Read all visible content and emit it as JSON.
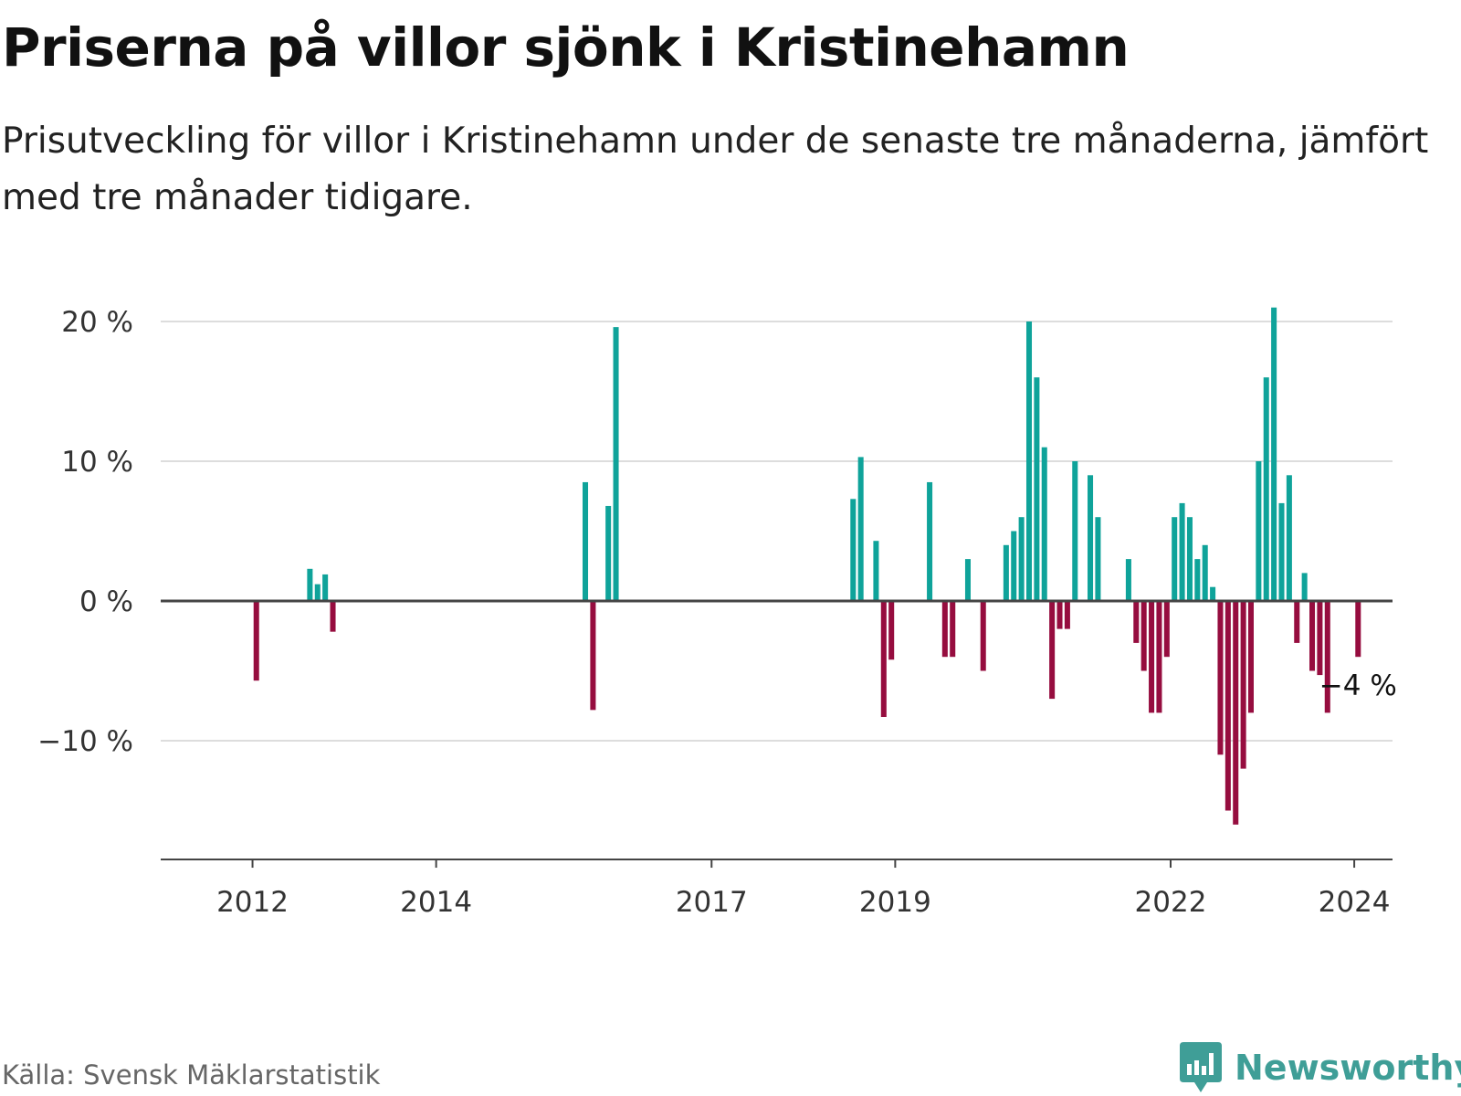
{
  "title": "Priserna på villor sjönk i Kristinehamn",
  "subtitle": "Prisutveckling för villor i Kristinehamn under de senaste tre månaderna, jämfört med tre månader tidigare.",
  "source": "Källa: Svensk Mäklarstatistik",
  "brand": "Newsworthy",
  "colors": {
    "positive": "#0fa39a",
    "negative": "#960d3f",
    "grid": "#dddddd",
    "axis": "#444444",
    "brand": "#3f9e97"
  },
  "chart_data": {
    "type": "bar",
    "title": "Priserna på villor sjönk i Kristinehamn",
    "xlabel": "",
    "ylabel": "",
    "ylim": [
      -18.5,
      21.5
    ],
    "y_ticks": [
      20,
      10,
      0,
      -10
    ],
    "y_tick_labels": [
      "20 %",
      "10 %",
      "0 %",
      "−10 %"
    ],
    "x_start": "2011-01",
    "x_end": "2024-06",
    "x_ticks": [
      {
        "year": 2012,
        "label": "2012"
      },
      {
        "year": 2014,
        "label": "2014"
      },
      {
        "year": 2017,
        "label": "2017"
      },
      {
        "year": 2019,
        "label": "2019"
      },
      {
        "year": 2022,
        "label": "2022"
      },
      {
        "year": 2024,
        "label": "2024"
      }
    ],
    "annotation": {
      "month": "2024-01",
      "value": -4,
      "label": "−4 %"
    },
    "series": [
      {
        "name": "Prisutveckling",
        "values": [
          {
            "month": "2012-01",
            "value": -5.7
          },
          {
            "month": "2012-08",
            "value": 2.3
          },
          {
            "month": "2012-09",
            "value": 1.2
          },
          {
            "month": "2012-10",
            "value": 1.9
          },
          {
            "month": "2012-11",
            "value": -2.2
          },
          {
            "month": "2015-08",
            "value": 8.5
          },
          {
            "month": "2015-09",
            "value": -7.8
          },
          {
            "month": "2015-11",
            "value": 6.8
          },
          {
            "month": "2015-12",
            "value": 19.6
          },
          {
            "month": "2018-07",
            "value": 7.3
          },
          {
            "month": "2018-08",
            "value": 10.3
          },
          {
            "month": "2018-10",
            "value": 4.3
          },
          {
            "month": "2018-11",
            "value": -8.3
          },
          {
            "month": "2018-12",
            "value": -4.2
          },
          {
            "month": "2019-05",
            "value": 8.5
          },
          {
            "month": "2019-07",
            "value": -4.0
          },
          {
            "month": "2019-08",
            "value": -4.0
          },
          {
            "month": "2019-10",
            "value": 3.0
          },
          {
            "month": "2019-12",
            "value": -5.0
          },
          {
            "month": "2020-03",
            "value": 4.0
          },
          {
            "month": "2020-04",
            "value": 5.0
          },
          {
            "month": "2020-05",
            "value": 6.0
          },
          {
            "month": "2020-06",
            "value": 20.0
          },
          {
            "month": "2020-07",
            "value": 16.0
          },
          {
            "month": "2020-08",
            "value": 11.0
          },
          {
            "month": "2020-09",
            "value": -7.0
          },
          {
            "month": "2020-10",
            "value": -2.0
          },
          {
            "month": "2020-11",
            "value": -2.0
          },
          {
            "month": "2020-12",
            "value": 10.0
          },
          {
            "month": "2021-02",
            "value": 9.0
          },
          {
            "month": "2021-03",
            "value": 6.0
          },
          {
            "month": "2021-07",
            "value": 3.0
          },
          {
            "month": "2021-08",
            "value": -3.0
          },
          {
            "month": "2021-09",
            "value": -5.0
          },
          {
            "month": "2021-10",
            "value": -8.0
          },
          {
            "month": "2021-11",
            "value": -8.0
          },
          {
            "month": "2021-12",
            "value": -4.0
          },
          {
            "month": "2022-01",
            "value": 6.0
          },
          {
            "month": "2022-02",
            "value": 7.0
          },
          {
            "month": "2022-03",
            "value": 6.0
          },
          {
            "month": "2022-04",
            "value": 3.0
          },
          {
            "month": "2022-05",
            "value": 4.0
          },
          {
            "month": "2022-06",
            "value": 1.0
          },
          {
            "month": "2022-07",
            "value": -11.0
          },
          {
            "month": "2022-08",
            "value": -15.0
          },
          {
            "month": "2022-09",
            "value": -16.0
          },
          {
            "month": "2022-10",
            "value": -12.0
          },
          {
            "month": "2022-11",
            "value": -8.0
          },
          {
            "month": "2022-12",
            "value": 10.0
          },
          {
            "month": "2023-01",
            "value": 16.0
          },
          {
            "month": "2023-02",
            "value": 21.0
          },
          {
            "month": "2023-03",
            "value": 7.0
          },
          {
            "month": "2023-04",
            "value": 9.0
          },
          {
            "month": "2023-05",
            "value": -3.0
          },
          {
            "month": "2023-06",
            "value": 2.0
          },
          {
            "month": "2023-07",
            "value": -5.0
          },
          {
            "month": "2023-08",
            "value": -5.3
          },
          {
            "month": "2023-09",
            "value": -8.0
          },
          {
            "month": "2024-01",
            "value": -4.0
          }
        ]
      }
    ]
  }
}
